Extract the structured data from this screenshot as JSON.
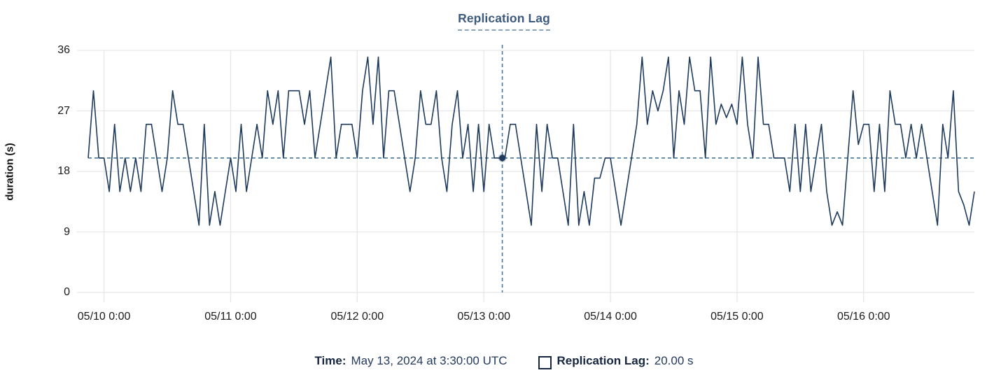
{
  "chart": {
    "title": "Replication Lag",
    "ylabel": "duration (s)"
  },
  "tooltip": {
    "time_label": "Time:",
    "time_value": "May 13, 2024 at 3:30:00 UTC",
    "series_swatch_icon": "square-outline-icon",
    "series_label": "Replication Lag:",
    "series_value": "20.00 s"
  },
  "colors": {
    "line": "#1e3a5c",
    "title": "#3d5a7e",
    "crosshair": "#47789c",
    "grid": "#e7e7e7",
    "footer_text": "#16263f"
  },
  "chart_data": {
    "type": "line",
    "title": "Replication Lag",
    "xlabel": "",
    "ylabel": "duration (s)",
    "ylim": [
      0,
      36
    ],
    "yticks": [
      0,
      9,
      18,
      27,
      36
    ],
    "grid": true,
    "legend_position": "bottom",
    "xticklabels": [
      "05/10 0:00",
      "05/11 0:00",
      "05/12 0:00",
      "05/13 0:00",
      "05/14 0:00",
      "05/15 0:00",
      "05/16 0:00"
    ],
    "xtick_indices": [
      3,
      27,
      51,
      75,
      99,
      123,
      147
    ],
    "x_unit": "hours, one point per hour starting 05/09 21:00",
    "values": [
      20,
      30,
      20,
      20,
      15,
      25,
      15,
      20,
      15,
      20,
      15,
      25,
      25,
      20,
      15,
      20,
      30,
      25,
      25,
      20,
      15,
      10,
      25,
      10,
      15,
      10,
      15,
      20,
      15,
      25,
      15,
      20,
      25,
      20,
      30,
      25,
      30,
      20,
      30,
      30,
      30,
      25,
      30,
      20,
      25,
      30,
      35,
      20,
      25,
      25,
      25,
      20,
      30,
      35,
      25,
      35,
      20,
      30,
      30,
      25,
      20,
      15,
      20,
      30,
      25,
      25,
      30,
      20,
      15,
      25,
      30,
      20,
      25,
      15,
      25,
      15,
      25,
      20,
      20,
      20,
      25,
      25,
      20,
      15,
      10,
      25,
      15,
      25,
      20,
      20,
      15,
      10,
      25,
      10,
      15,
      10,
      17,
      17,
      20,
      20,
      15,
      10,
      15,
      20,
      25,
      35,
      25,
      30,
      27,
      30,
      35,
      20,
      30,
      25,
      35,
      30,
      30,
      20,
      35,
      25,
      28,
      26,
      28,
      25,
      35,
      25,
      20,
      35,
      25,
      25,
      20,
      20,
      20,
      15,
      25,
      15,
      25,
      15,
      20,
      25,
      15,
      10,
      12,
      10,
      20,
      30,
      22,
      25,
      25,
      15,
      25,
      15,
      30,
      25,
      25,
      20,
      25,
      20,
      25,
      20,
      15,
      10,
      25,
      20,
      30,
      15,
      13,
      10,
      15
    ],
    "crosshair": {
      "index": 78.5,
      "value": 20,
      "time": "May 13, 2024 at 3:30:00 UTC",
      "display": "20.00 s"
    }
  }
}
